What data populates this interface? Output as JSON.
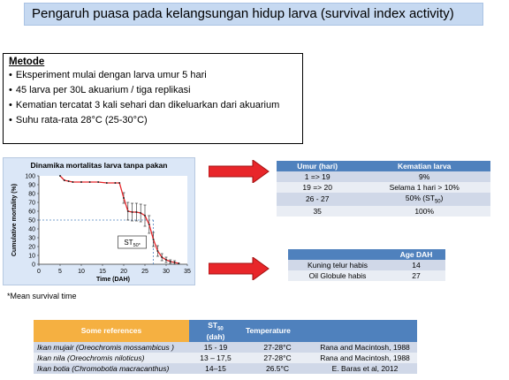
{
  "title": "Pengaruh puasa pada kelangsungan hidup larva (survival index activity)",
  "metode": {
    "heading": "Metode",
    "items": [
      "Eksperiment mulai dengan larva umur 5 hari",
      "45 larva per 30L akuarium / tiga replikasi",
      "Kematian tercatat  3 kali sehari dan  dikeluarkan dari akuarium",
      "Suhu rata-rata 28°C (25-30°C)"
    ]
  },
  "chart_data": {
    "type": "line",
    "title": "Dinamika mortalitas larva tanpa pakan",
    "xlabel": "Time (DAH)",
    "ylabel": "Cumulative mortality (%)",
    "xlim": [
      0,
      35
    ],
    "ylim": [
      0,
      100
    ],
    "xticks": [
      "0",
      "5",
      "10",
      "15",
      "20",
      "25",
      "30",
      "35"
    ],
    "yticks": [
      "0",
      "10",
      "20",
      "30",
      "40",
      "50",
      "60",
      "70",
      "80",
      "90",
      "100"
    ],
    "grid": false,
    "x": [
      5,
      6,
      7,
      8,
      10,
      12,
      14,
      16,
      18,
      19,
      20,
      21,
      22,
      23,
      24,
      25,
      26,
      27,
      28,
      29,
      30,
      31,
      32,
      33
    ],
    "y": [
      100,
      95,
      94,
      93,
      93,
      93,
      93,
      92,
      92,
      92,
      75,
      60,
      59,
      59,
      58,
      55,
      45,
      28,
      15,
      8,
      5,
      3,
      2,
      1
    ],
    "error_bars_x": [
      20,
      21,
      22,
      23,
      24,
      25,
      26,
      27,
      28,
      29,
      30,
      31,
      32
    ],
    "st50_x": 27,
    "st50_label": "ST50*"
  },
  "note": "*Mean survival time",
  "table1": {
    "headers": [
      "Umur (hari)",
      "Kematian larva"
    ],
    "rows": [
      [
        "1 => 19",
        "9%"
      ],
      [
        "19 => 20",
        "Selama 1 hari > 10%"
      ],
      [
        "26 - 27",
        "50% (ST50)"
      ],
      [
        "35",
        "100%"
      ]
    ]
  },
  "table2": {
    "headers": [
      "",
      "Age DAH"
    ],
    "rows": [
      [
        "Kuning telur habis",
        "14"
      ],
      [
        "Oil Globule habis",
        "27"
      ]
    ]
  },
  "table3": {
    "headers": [
      "Some references",
      "ST50 (dah)",
      "Temperature",
      ""
    ],
    "rows": [
      [
        "Ikan mujair (Oreochromis mossambicus )",
        "15 - 19",
        "27-28°C",
        "Rana and Macintosh, 1988"
      ],
      [
        "Ikan nila (Oreochromis niloticus)",
        "13 – 17,5",
        "27-28°C",
        "Rana and Macintosh, 1988"
      ],
      [
        "Ikan botia (Chromobotia macracanthus)",
        "14–15",
        "26.5°C",
        "E. Baras et al, 2012"
      ]
    ]
  },
  "colors": {
    "arrow": "#e8262a",
    "line": "#e8262a",
    "header_blue": "#4f81bd",
    "header_orange": "#f5b041"
  }
}
